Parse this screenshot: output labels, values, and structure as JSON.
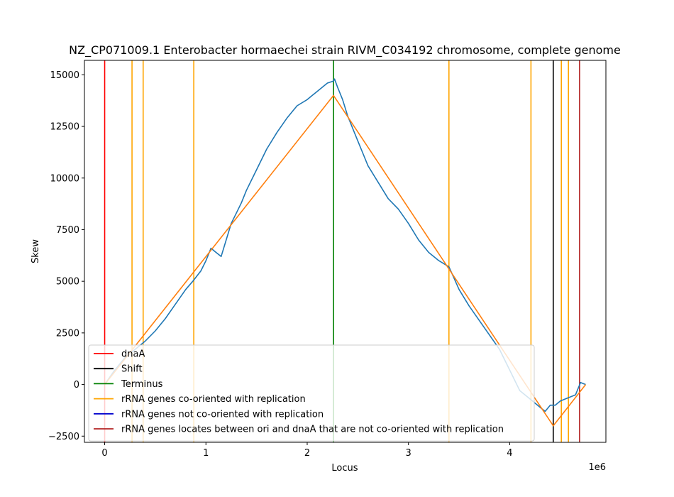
{
  "chart_data": {
    "type": "line",
    "title": "NZ_CP071009.1 Enterobacter hormaechei strain RIVM_C034192 chromosome, complete genome",
    "xlabel": "Locus",
    "ylabel": "Skew",
    "x_offset_label": "1e6",
    "xlim": [
      -0.2,
      4.95
    ],
    "ylim": [
      -2800,
      15700
    ],
    "xticks": [
      0,
      1,
      2,
      3,
      4
    ],
    "xtick_labels": [
      "0",
      "1",
      "2",
      "3",
      "4"
    ],
    "yticks": [
      -2500,
      0,
      2500,
      5000,
      7500,
      10000,
      12500,
      15000
    ],
    "ytick_labels": [
      "−2500",
      "0",
      "2500",
      "5000",
      "7500",
      "10000",
      "12500",
      "15000"
    ],
    "grid": false,
    "legend_position": "lower-left",
    "series": [
      {
        "name": "",
        "color": "#1f77b4",
        "x": [
          0,
          0.1,
          0.2,
          0.3,
          0.4,
          0.5,
          0.6,
          0.7,
          0.8,
          0.87,
          0.95,
          1.0,
          1.05,
          1.1,
          1.15,
          1.2,
          1.25,
          1.3,
          1.35,
          1.4,
          1.5,
          1.6,
          1.7,
          1.8,
          1.9,
          2.0,
          2.05,
          2.1,
          2.15,
          2.2,
          2.26,
          2.27,
          2.3,
          2.35,
          2.4,
          2.5,
          2.6,
          2.7,
          2.8,
          2.9,
          3.0,
          3.1,
          3.2,
          3.3,
          3.4,
          3.5,
          3.6,
          3.7,
          3.8,
          3.9,
          4.0,
          4.1,
          4.2,
          4.3,
          4.35,
          4.4,
          4.45,
          4.5,
          4.55,
          4.6,
          4.65,
          4.7,
          4.75
        ],
        "y": [
          0,
          700,
          1300,
          1700,
          2100,
          2600,
          3200,
          3900,
          4600,
          5000,
          5500,
          6000,
          6600,
          6400,
          6200,
          7000,
          7800,
          8300,
          8800,
          9400,
          10400,
          11400,
          12200,
          12900,
          13500,
          13800,
          14000,
          14200,
          14400,
          14600,
          14700,
          14800,
          14400,
          13800,
          13000,
          11800,
          10600,
          9800,
          9000,
          8500,
          7800,
          7000,
          6400,
          6000,
          5700,
          4600,
          3800,
          3100,
          2400,
          1700,
          700,
          -300,
          -700,
          -1100,
          -1300,
          -1000,
          -1000,
          -800,
          -700,
          -600,
          -500,
          100,
          0
        ]
      },
      {
        "name": "",
        "color": "#ff7f0e",
        "x": [
          0,
          2.26,
          4.43,
          4.75
        ],
        "y": [
          0,
          14000,
          -2000,
          0
        ]
      }
    ],
    "vertical_lines": [
      {
        "kind": "dnaA",
        "x": 0.0,
        "color": "#ff0000"
      },
      {
        "kind": "co",
        "x": 0.27,
        "color": "#ffa500"
      },
      {
        "kind": "co",
        "x": 0.38,
        "color": "#ffa500"
      },
      {
        "kind": "co",
        "x": 0.88,
        "color": "#ffa500"
      },
      {
        "kind": "terminus",
        "x": 2.26,
        "color": "#008000"
      },
      {
        "kind": "co",
        "x": 3.4,
        "color": "#ffa500"
      },
      {
        "kind": "co",
        "x": 4.21,
        "color": "#ffa500"
      },
      {
        "kind": "shift",
        "x": 4.43,
        "color": "#000000"
      },
      {
        "kind": "co",
        "x": 4.51,
        "color": "#ffa500"
      },
      {
        "kind": "co",
        "x": 4.58,
        "color": "#ffa500"
      },
      {
        "kind": "between",
        "x": 4.69,
        "color": "#b22222"
      }
    ],
    "legend": [
      {
        "label": "dnaA",
        "color": "#ff0000"
      },
      {
        "label": "Shift",
        "color": "#000000"
      },
      {
        "label": "Terminus",
        "color": "#008000"
      },
      {
        "label": "rRNA genes co-oriented with replication",
        "color": "#ffa500"
      },
      {
        "label": "rRNA genes not co-oriented with replication",
        "color": "#0000cd"
      },
      {
        "label": "rRNA genes locates between ori and dnaA that are not co-oriented with replication",
        "color": "#b22222"
      }
    ]
  }
}
